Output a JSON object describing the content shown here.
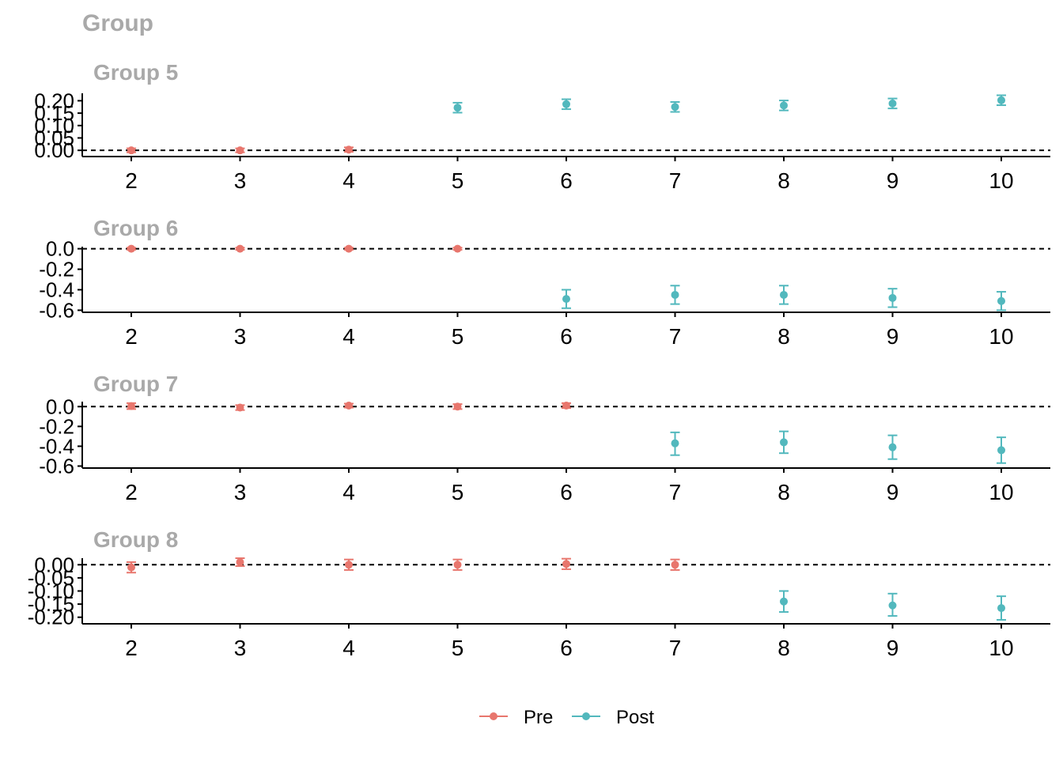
{
  "figure": {
    "title": "Group"
  },
  "legend": {
    "position": "bottom",
    "items": [
      {
        "key": "pre",
        "label": "Pre",
        "color": "#E8766D"
      },
      {
        "key": "post",
        "label": "Post",
        "color": "#52B8BD"
      }
    ]
  },
  "chart_data": [
    {
      "type": "scatter",
      "title": "Group 5",
      "x_ticks": [
        2,
        3,
        4,
        5,
        6,
        7,
        8,
        9,
        10
      ],
      "y_ticks": [
        "0.00",
        "0.05",
        "0.10",
        "0.15",
        "0.20"
      ],
      "ylim": [
        -0.025,
        0.23
      ],
      "reference_line": 0,
      "grid": false,
      "points": [
        {
          "x": 2,
          "y": 0.0,
          "lo": -0.008,
          "hi": 0.008,
          "period": "pre"
        },
        {
          "x": 3,
          "y": 0.0,
          "lo": -0.008,
          "hi": 0.008,
          "period": "pre"
        },
        {
          "x": 4,
          "y": 0.003,
          "lo": -0.006,
          "hi": 0.012,
          "period": "pre"
        },
        {
          "x": 5,
          "y": 0.172,
          "lo": 0.152,
          "hi": 0.192,
          "period": "post"
        },
        {
          "x": 6,
          "y": 0.186,
          "lo": 0.166,
          "hi": 0.206,
          "period": "post"
        },
        {
          "x": 7,
          "y": 0.175,
          "lo": 0.155,
          "hi": 0.195,
          "period": "post"
        },
        {
          "x": 8,
          "y": 0.181,
          "lo": 0.161,
          "hi": 0.201,
          "period": "post"
        },
        {
          "x": 9,
          "y": 0.189,
          "lo": 0.169,
          "hi": 0.209,
          "period": "post"
        },
        {
          "x": 10,
          "y": 0.202,
          "lo": 0.182,
          "hi": 0.222,
          "period": "post"
        }
      ]
    },
    {
      "type": "scatter",
      "title": "Group 6",
      "x_ticks": [
        2,
        3,
        4,
        5,
        6,
        7,
        8,
        9,
        10
      ],
      "y_ticks": [
        "0.0",
        "-0.2",
        "-0.4",
        "-0.6"
      ],
      "ylim": [
        -0.62,
        0.02
      ],
      "reference_line": 0,
      "grid": false,
      "points": [
        {
          "x": 2,
          "y": 0.0,
          "lo": -0.01,
          "hi": 0.01,
          "period": "pre"
        },
        {
          "x": 3,
          "y": 0.0,
          "lo": -0.01,
          "hi": 0.01,
          "period": "pre"
        },
        {
          "x": 4,
          "y": 0.0,
          "lo": -0.01,
          "hi": 0.01,
          "period": "pre"
        },
        {
          "x": 5,
          "y": 0.0,
          "lo": -0.01,
          "hi": 0.01,
          "period": "pre"
        },
        {
          "x": 6,
          "y": -0.49,
          "lo": -0.58,
          "hi": -0.4,
          "period": "post"
        },
        {
          "x": 7,
          "y": -0.45,
          "lo": -0.54,
          "hi": -0.36,
          "period": "post"
        },
        {
          "x": 8,
          "y": -0.45,
          "lo": -0.54,
          "hi": -0.36,
          "period": "post"
        },
        {
          "x": 9,
          "y": -0.48,
          "lo": -0.57,
          "hi": -0.39,
          "period": "post"
        },
        {
          "x": 10,
          "y": -0.51,
          "lo": -0.6,
          "hi": -0.42,
          "period": "post"
        }
      ]
    },
    {
      "type": "scatter",
      "title": "Group 7",
      "x_ticks": [
        2,
        3,
        4,
        5,
        6,
        7,
        8,
        9,
        10
      ],
      "y_ticks": [
        "0.0",
        "-0.2",
        "-0.4",
        "-0.6"
      ],
      "ylim": [
        -0.62,
        0.05
      ],
      "reference_line": 0,
      "grid": false,
      "points": [
        {
          "x": 2,
          "y": 0.005,
          "lo": -0.025,
          "hi": 0.035,
          "period": "pre"
        },
        {
          "x": 3,
          "y": -0.01,
          "lo": -0.035,
          "hi": 0.015,
          "period": "pre"
        },
        {
          "x": 4,
          "y": 0.01,
          "lo": -0.01,
          "hi": 0.03,
          "period": "pre"
        },
        {
          "x": 5,
          "y": 0.0,
          "lo": -0.025,
          "hi": 0.025,
          "period": "pre"
        },
        {
          "x": 6,
          "y": 0.01,
          "lo": -0.015,
          "hi": 0.035,
          "period": "pre"
        },
        {
          "x": 7,
          "y": -0.37,
          "lo": -0.49,
          "hi": -0.26,
          "period": "post"
        },
        {
          "x": 8,
          "y": -0.36,
          "lo": -0.47,
          "hi": -0.25,
          "period": "post"
        },
        {
          "x": 9,
          "y": -0.41,
          "lo": -0.53,
          "hi": -0.29,
          "period": "post"
        },
        {
          "x": 10,
          "y": -0.44,
          "lo": -0.57,
          "hi": -0.31,
          "period": "post"
        }
      ]
    },
    {
      "type": "scatter",
      "title": "Group 8",
      "x_ticks": [
        2,
        3,
        4,
        5,
        6,
        7,
        8,
        9,
        10
      ],
      "y_ticks": [
        "0.00",
        "-0.05",
        "-0.10",
        "-0.15",
        "-0.20"
      ],
      "ylim": [
        -0.225,
        0.025
      ],
      "reference_line": 0,
      "grid": false,
      "points": [
        {
          "x": 2,
          "y": -0.01,
          "lo": -0.03,
          "hi": 0.01,
          "period": "pre"
        },
        {
          "x": 3,
          "y": 0.01,
          "lo": -0.005,
          "hi": 0.025,
          "period": "pre"
        },
        {
          "x": 4,
          "y": 0.0,
          "lo": -0.02,
          "hi": 0.02,
          "period": "pre"
        },
        {
          "x": 5,
          "y": 0.0,
          "lo": -0.02,
          "hi": 0.02,
          "period": "pre"
        },
        {
          "x": 6,
          "y": 0.003,
          "lo": -0.017,
          "hi": 0.023,
          "period": "pre"
        },
        {
          "x": 7,
          "y": 0.0,
          "lo": -0.02,
          "hi": 0.02,
          "period": "pre"
        },
        {
          "x": 8,
          "y": -0.14,
          "lo": -0.18,
          "hi": -0.1,
          "period": "post"
        },
        {
          "x": 9,
          "y": -0.155,
          "lo": -0.195,
          "hi": -0.11,
          "period": "post"
        },
        {
          "x": 10,
          "y": -0.165,
          "lo": -0.21,
          "hi": -0.12,
          "period": "post"
        }
      ]
    }
  ]
}
